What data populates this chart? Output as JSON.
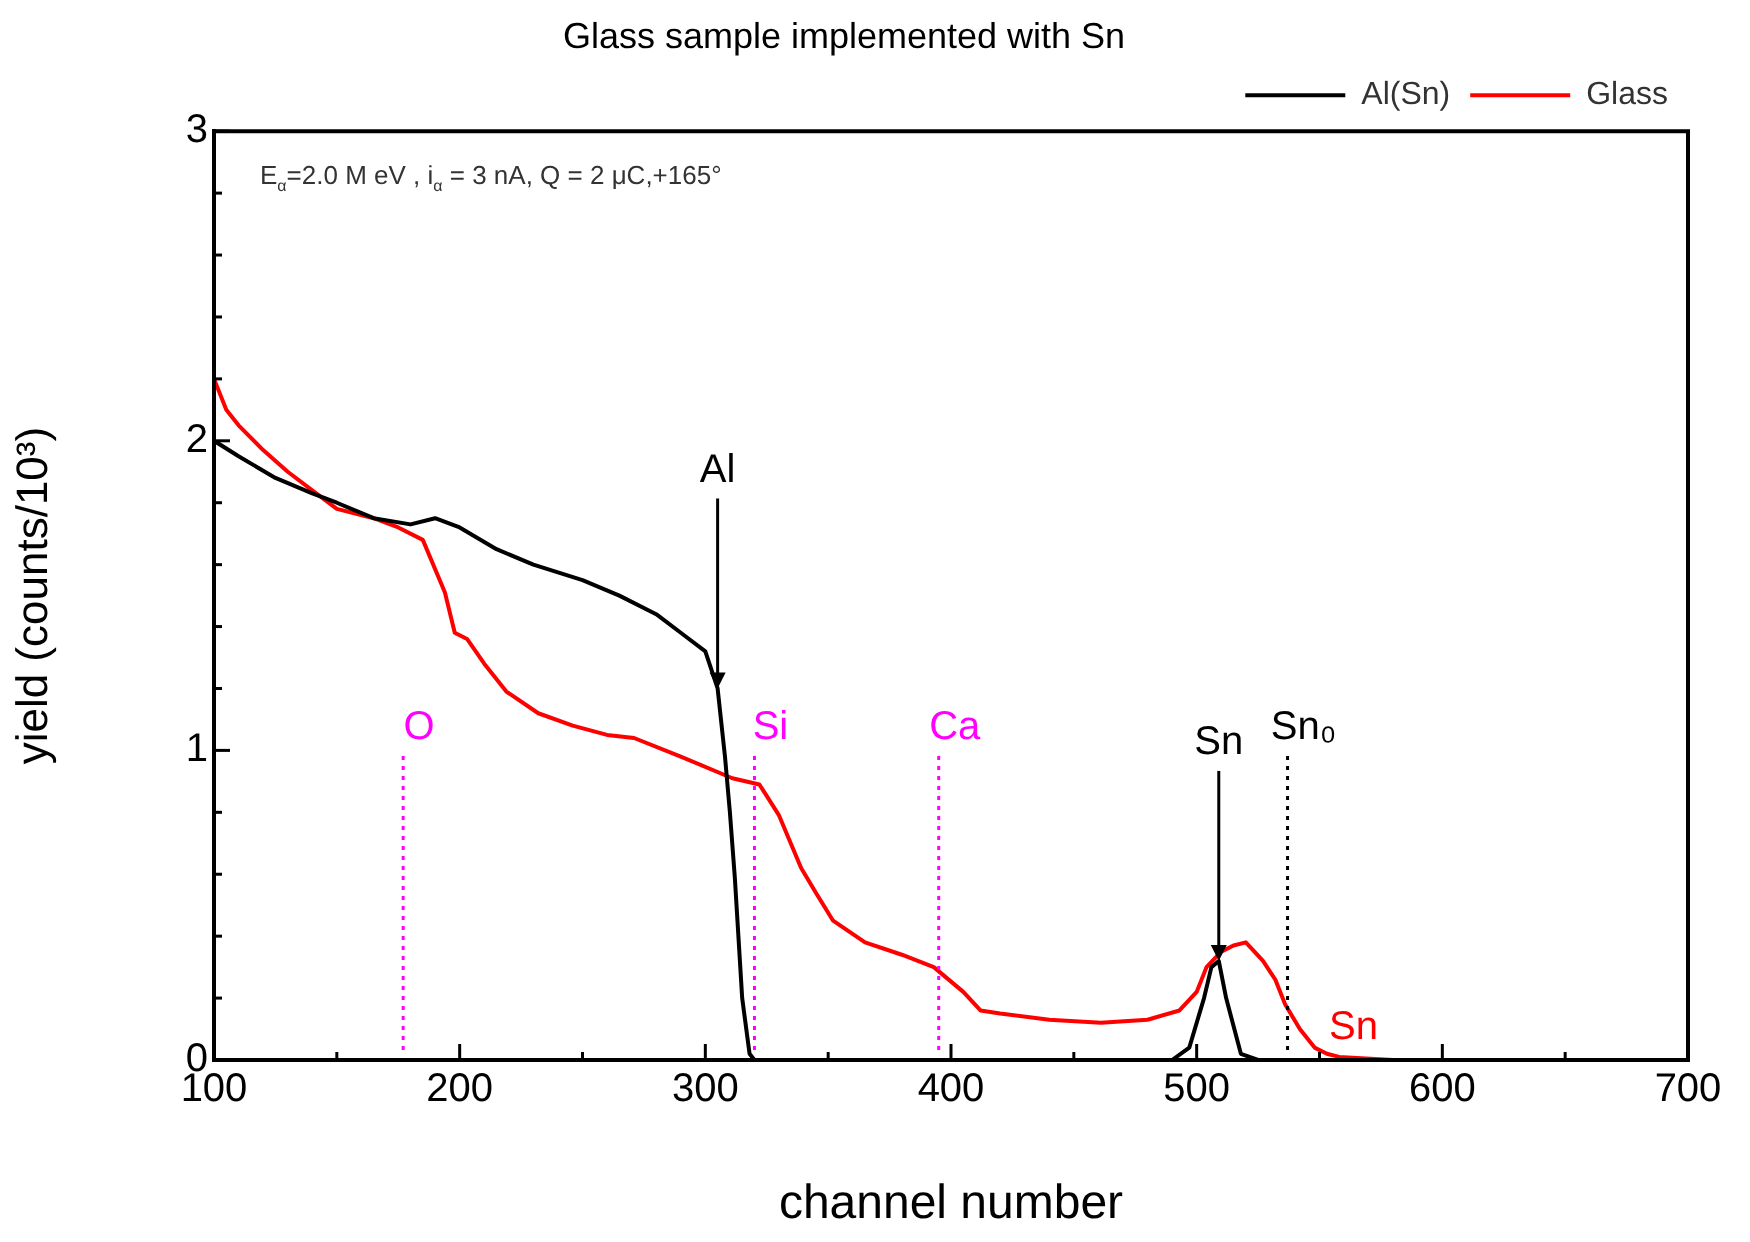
{
  "chart_data": {
    "type": "line",
    "title": "Glass sample implemented with Sn",
    "xlabel": "channel number",
    "ylabel": "yield (counts/10³)",
    "xlim": [
      100,
      700
    ],
    "ylim": [
      0,
      3
    ],
    "xticks": [
      100,
      {
        "value": 150,
        "label": null
      },
      200,
      {
        "value": 250,
        "label": null
      },
      300,
      {
        "value": 350,
        "label": null
      },
      400,
      {
        "value": 450,
        "label": null
      },
      500,
      {
        "value": 550,
        "label": null
      },
      600,
      {
        "value": 650,
        "label": null
      },
      700
    ],
    "yticks": [
      0,
      {
        "value": 0.2,
        "label": null
      },
      {
        "value": 0.4,
        "label": null
      },
      {
        "value": 0.6,
        "label": null
      },
      {
        "value": 0.8,
        "label": null
      },
      1,
      {
        "value": 1.2,
        "label": null
      },
      {
        "value": 1.4,
        "label": null
      },
      {
        "value": 1.6,
        "label": null
      },
      {
        "value": 1.8,
        "label": null
      },
      2,
      {
        "value": 2.2,
        "label": null
      },
      {
        "value": 2.4,
        "label": null
      },
      {
        "value": 2.6,
        "label": null
      },
      {
        "value": 2.8,
        "label": null
      },
      3
    ],
    "legend": "top right",
    "marker": "none",
    "line_style": "solid",
    "series": [
      {
        "name": "Al(Sn)",
        "color": "#000000",
        "x": [
          100,
          110,
          125,
          140,
          150,
          165,
          180,
          190,
          200,
          215,
          230,
          250,
          265,
          280,
          290,
          300,
          305,
          308,
          310,
          312,
          315,
          318,
          320,
          400,
          490,
          497,
          503,
          506,
          509,
          512,
          518,
          525,
          600,
          700
        ],
        "values": [
          2.0,
          1.95,
          1.88,
          1.83,
          1.8,
          1.75,
          1.73,
          1.75,
          1.72,
          1.65,
          1.6,
          1.55,
          1.5,
          1.44,
          1.38,
          1.32,
          1.2,
          0.98,
          0.8,
          0.59,
          0.2,
          0.02,
          0,
          0,
          0,
          0.04,
          0.2,
          0.3,
          0.32,
          0.2,
          0.02,
          0,
          0,
          0
        ]
      },
      {
        "name": "Glass",
        "color": "#ff0000",
        "x": [
          100,
          105,
          110,
          120,
          130,
          140,
          150,
          165,
          175,
          185,
          194,
          198,
          203,
          210,
          219,
          232,
          246,
          260,
          271,
          290,
          311,
          322,
          330,
          339,
          345,
          352,
          365,
          380,
          393,
          405,
          412,
          420,
          440,
          461,
          480,
          493,
          500,
          504,
          510,
          515,
          520,
          527,
          532,
          536,
          542,
          548,
          553,
          558,
          580,
          700
        ],
        "values": [
          2.2,
          2.1,
          2.05,
          1.97,
          1.9,
          1.84,
          1.78,
          1.75,
          1.72,
          1.68,
          1.51,
          1.38,
          1.36,
          1.28,
          1.19,
          1.12,
          1.08,
          1.05,
          1.04,
          0.98,
          0.91,
          0.89,
          0.79,
          0.62,
          0.54,
          0.45,
          0.38,
          0.34,
          0.3,
          0.22,
          0.16,
          0.15,
          0.13,
          0.12,
          0.13,
          0.16,
          0.22,
          0.3,
          0.35,
          0.37,
          0.38,
          0.32,
          0.26,
          0.18,
          0.1,
          0.04,
          0.02,
          0.01,
          0,
          0
        ]
      }
    ],
    "annotations": [
      "E$_{α}$=2.0 M eV , i$_{α}$ = 3 nA, Q = 2 μC,+165°",
      {
        "text": "Al",
        "x": 305,
        "y": 1.2
      },
      {
        "text": "Sn",
        "x": 509,
        "y": 0.32
      },
      {
        "text": "Sn",
        "x": 536,
        "y": 0.18
      }
    ],
    "ref_lines": [
      {
        "axis": "x",
        "value": 177,
        "label": "O",
        "color": "#ff00ff",
        "line_style": "dotted"
      },
      {
        "axis": "x",
        "value": 320,
        "label": "Si",
        "color": "#ff00ff",
        "line_style": "dotted"
      },
      {
        "axis": "x",
        "value": 395,
        "label": "Ca",
        "color": "#ff00ff",
        "line_style": "dotted"
      },
      {
        "axis": "x",
        "value": 537,
        "label": "Sn₀",
        "color": "#000000",
        "line_style": "dotted"
      }
    ]
  }
}
